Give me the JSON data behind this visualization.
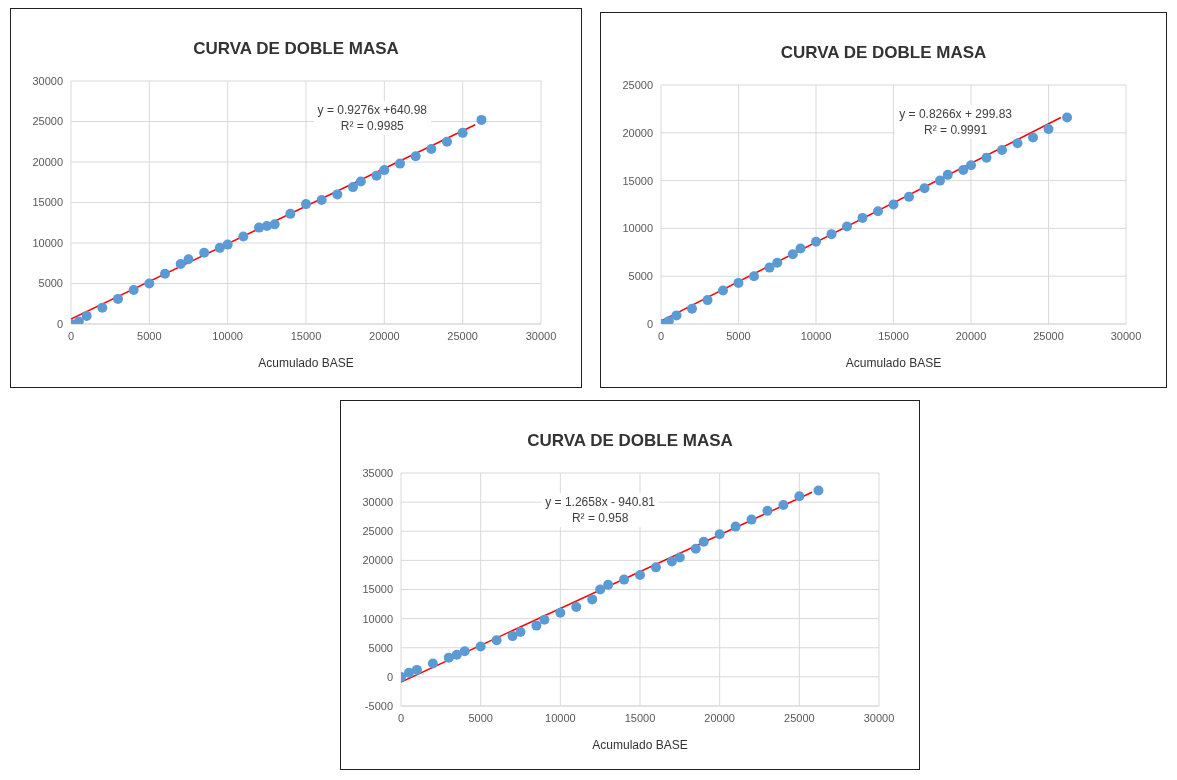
{
  "chart_data": [
    {
      "type": "scatter",
      "title": "CURVA DE DOBLE MASA",
      "xlabel": "Acumulado BASE",
      "xlim": [
        0,
        30000
      ],
      "xticks": [
        0,
        5000,
        10000,
        15000,
        20000,
        25000,
        30000
      ],
      "ylim": [
        0,
        30000
      ],
      "yticks": [
        0,
        5000,
        10000,
        15000,
        20000,
        25000,
        30000
      ],
      "grid": true,
      "marker": "circle",
      "annotations": [
        "y = 0.9276x +640.98",
        "R² = 0.9985"
      ],
      "series": [
        {
          "type": "scatter",
          "color": "#5b9bd5",
          "x": [
            0,
            500,
            1000,
            2000,
            3000,
            4000,
            5000,
            6000,
            7000,
            7500,
            8500,
            9500,
            10000,
            11000,
            12000,
            12500,
            13000,
            14000,
            15000,
            16000,
            17000,
            18000,
            18500,
            19500,
            20000,
            21000,
            22000,
            23000,
            24000,
            25000,
            26200
          ],
          "values": [
            0,
            300,
            1000,
            2000,
            3100,
            4200,
            5000,
            6200,
            7400,
            8000,
            8800,
            9400,
            9800,
            10800,
            11900,
            12100,
            12300,
            13600,
            14800,
            15300,
            16000,
            16900,
            17600,
            18300,
            19000,
            19800,
            20700,
            21600,
            22500,
            23600,
            25200
          ]
        },
        {
          "type": "line",
          "color": "#ff0000",
          "marker": "none",
          "x": [
            0,
            25800
          ],
          "values": [
            600,
            24600
          ]
        }
      ]
    },
    {
      "type": "scatter",
      "title": "CURVA DE DOBLE MASA",
      "xlabel": "Acumulado BASE",
      "xlim": [
        0,
        30000
      ],
      "xticks": [
        0,
        5000,
        10000,
        15000,
        20000,
        25000,
        30000
      ],
      "ylim": [
        0,
        25000
      ],
      "yticks": [
        0,
        5000,
        10000,
        15000,
        20000,
        25000
      ],
      "grid": true,
      "marker": "circle",
      "annotations": [
        "y = 0.8266x + 299.83",
        "R² = 0.9991"
      ],
      "series": [
        {
          "type": "scatter",
          "color": "#5b9bd5",
          "x": [
            0,
            500,
            1000,
            2000,
            3000,
            4000,
            5000,
            6000,
            7000,
            7500,
            8500,
            9000,
            10000,
            11000,
            12000,
            13000,
            14000,
            15000,
            16000,
            17000,
            18000,
            18500,
            19500,
            20000,
            21000,
            22000,
            23000,
            24000,
            25000,
            26200
          ],
          "values": [
            0,
            300,
            900,
            1600,
            2500,
            3500,
            4300,
            5000,
            5900,
            6400,
            7300,
            7900,
            8600,
            9400,
            10200,
            11100,
            11800,
            12500,
            13300,
            14200,
            15000,
            15600,
            16100,
            16600,
            17400,
            18200,
            18900,
            19500,
            20400,
            21600
          ]
        },
        {
          "type": "line",
          "color": "#ff0000",
          "marker": "none",
          "x": [
            0,
            25800
          ],
          "values": [
            300,
            21600
          ]
        }
      ]
    },
    {
      "type": "scatter",
      "title": "CURVA DE DOBLE MASA",
      "xlabel": "Acumulado BASE",
      "xlim": [
        0,
        30000
      ],
      "xticks": [
        0,
        5000,
        10000,
        15000,
        20000,
        25000,
        30000
      ],
      "ylim": [
        -5000,
        35000
      ],
      "yticks": [
        -5000,
        0,
        5000,
        10000,
        15000,
        20000,
        25000,
        30000,
        35000
      ],
      "grid": true,
      "marker": "circle",
      "annotations": [
        "y = 1.2658x - 940.81",
        "R² = 0.958"
      ],
      "series": [
        {
          "type": "scatter",
          "color": "#5b9bd5",
          "x": [
            0,
            500,
            1000,
            2000,
            3000,
            3500,
            4000,
            5000,
            6000,
            7000,
            7500,
            8500,
            9000,
            10000,
            11000,
            12000,
            12500,
            13000,
            14000,
            15000,
            16000,
            17000,
            17500,
            18500,
            19000,
            20000,
            21000,
            22000,
            23000,
            24000,
            25000,
            26200
          ],
          "values": [
            0,
            700,
            1200,
            2300,
            3300,
            3800,
            4400,
            5200,
            6300,
            7000,
            7700,
            8800,
            9800,
            11000,
            12000,
            13300,
            15000,
            15800,
            16700,
            17500,
            18800,
            19800,
            20500,
            22000,
            23200,
            24500,
            25800,
            27000,
            28500,
            29500,
            31000,
            32000
          ]
        },
        {
          "type": "line",
          "color": "#ff0000",
          "marker": "none",
          "x": [
            0,
            25800
          ],
          "values": [
            -900,
            31700
          ]
        }
      ]
    }
  ]
}
